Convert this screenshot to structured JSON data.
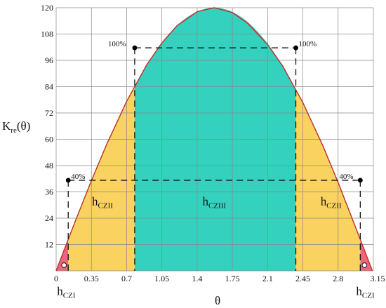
{
  "chart_data": {
    "type": "area",
    "title": "",
    "xlabel": "θ",
    "ylabel": {
      "main": "K",
      "sub": "re",
      "suffix": "(θ)"
    },
    "xlim": [
      0,
      3.15
    ],
    "ylim": [
      0,
      120
    ],
    "x_ticks": [
      0,
      0.35,
      0.7,
      1.05,
      1.4,
      1.75,
      2.1,
      2.45,
      2.8,
      3.15
    ],
    "x_tick_labels": [
      "0",
      "0.35",
      "0.7",
      "1.05",
      "1.4",
      "1.75",
      "2.1",
      "2.45",
      "2.8",
      "3.15"
    ],
    "y_ticks": [
      12,
      24,
      36,
      48,
      60,
      72,
      84,
      96,
      108,
      120
    ],
    "y_tick_labels": [
      "12",
      "24",
      "36",
      "48",
      "60",
      "72",
      "84",
      "96",
      "108",
      "120"
    ],
    "grid": true,
    "curve": {
      "peak": 120,
      "x": [
        0,
        0.1,
        0.2,
        0.35,
        0.5,
        0.7,
        0.9,
        1.05,
        1.2,
        1.4,
        1.57,
        1.75,
        1.9,
        2.1,
        2.25,
        2.45,
        2.65,
        2.8,
        2.95,
        3.05,
        3.14
      ],
      "y": [
        0,
        12.0,
        23.8,
        41.1,
        57.5,
        77.3,
        94.0,
        104.0,
        111.8,
        118.2,
        120.0,
        117.8,
        113.0,
        103.2,
        93.4,
        76.7,
        56.9,
        40.3,
        22.6,
        10.8,
        0
      ]
    },
    "zones": [
      {
        "name": "hCZI",
        "main": "h",
        "sub": "CZI",
        "x_ranges": [
          [
            0,
            0.12
          ],
          [
            3.02,
            3.14
          ]
        ],
        "color": "#F0647C",
        "threshold_pct": 0
      },
      {
        "name": "hCZII",
        "main": "h",
        "sub": "CZII",
        "x_ranges": [
          [
            0.12,
            0.78
          ],
          [
            2.38,
            3.02
          ]
        ],
        "color": "#FAD25F",
        "threshold_pct": 40
      },
      {
        "name": "hCZIII",
        "main": "h",
        "sub": "CZIII",
        "x_ranges": [
          [
            0.78,
            2.38
          ]
        ],
        "color": "#33D1BE",
        "threshold_pct": 100
      }
    ],
    "thresholds": [
      {
        "label": "40%",
        "y": 41.3,
        "x_left": 0.12,
        "x_right": 3.02
      },
      {
        "label": "100%",
        "y": 101.7,
        "x_left": 0.78,
        "x_right": 2.38
      }
    ],
    "annotations": [
      {
        "main": "h",
        "sub": "CZII",
        "x": 0.46,
        "y": 30,
        "zone": "left-yellow"
      },
      {
        "main": "h",
        "sub": "CZIII",
        "x": 1.57,
        "y": 30,
        "zone": "teal"
      },
      {
        "main": "h",
        "sub": "CZII",
        "x": 2.73,
        "y": 30,
        "zone": "right-yellow"
      },
      {
        "main": "h",
        "sub": "CZI",
        "x": 0.1,
        "y": -11,
        "zone": "left-red"
      },
      {
        "main": "h",
        "sub": "CZI",
        "x": 3.07,
        "y": -11,
        "zone": "right-red"
      }
    ],
    "colors": {
      "red_zone": "#F0647C",
      "yellow_zone": "#FAD25F",
      "teal_zone": "#33D1BE",
      "curve": "#B8322A",
      "grid": "#888888"
    }
  }
}
